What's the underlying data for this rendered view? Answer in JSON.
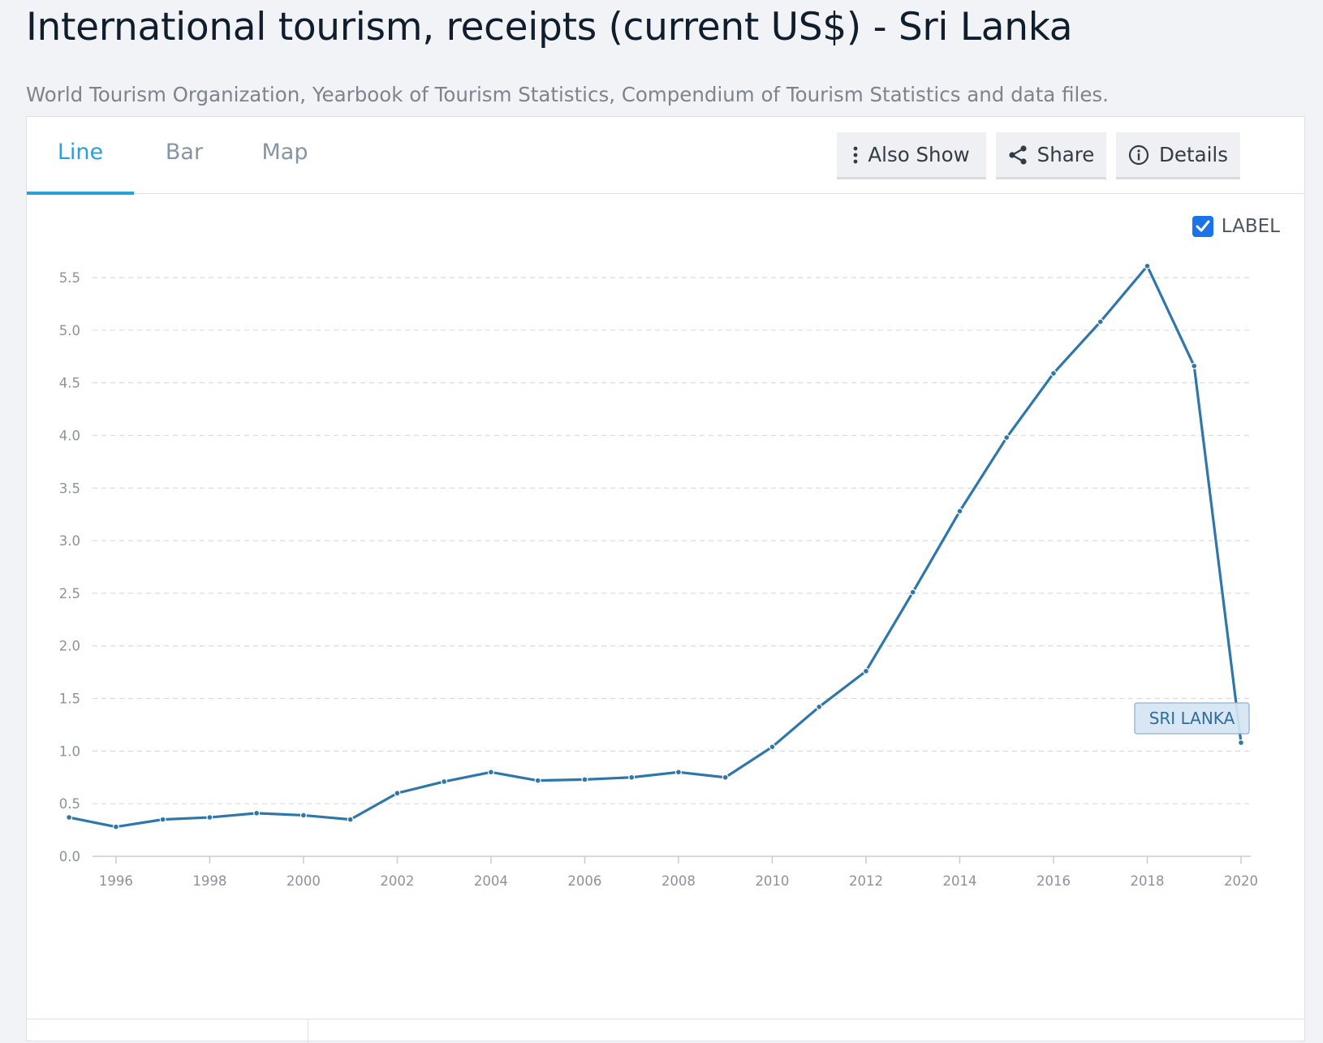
{
  "header": {
    "title": "International tourism, receipts (current US$) - Sri Lanka",
    "subtitle": "World Tourism Organization, Yearbook of Tourism Statistics, Compendium of Tourism Statistics and data files."
  },
  "tabs": [
    {
      "label": "Line",
      "active": true
    },
    {
      "label": "Bar",
      "active": false
    },
    {
      "label": "Map",
      "active": false
    }
  ],
  "toolbar": {
    "also_show": {
      "label": "Also Show",
      "icon": "kebab-icon"
    },
    "share": {
      "label": "Share",
      "icon": "share-icon"
    },
    "details": {
      "label": "Details",
      "icon": "info-icon"
    }
  },
  "label_toggle": {
    "label": "LABEL",
    "checked": true
  },
  "colors": {
    "accent": "#2b9fd8",
    "line": "#2f77a8",
    "checkbox": "#1a73e8",
    "series_label_bg": "#d5e5f2"
  },
  "chart_data": {
    "type": "line",
    "x": [
      1995,
      1996,
      1997,
      1998,
      1999,
      2000,
      2001,
      2002,
      2003,
      2004,
      2005,
      2006,
      2007,
      2008,
      2009,
      2010,
      2011,
      2012,
      2013,
      2014,
      2015,
      2016,
      2017,
      2018,
      2019,
      2020
    ],
    "series": [
      {
        "name": "SRI LANKA",
        "values": [
          0.37,
          0.28,
          0.35,
          0.37,
          0.41,
          0.39,
          0.35,
          0.6,
          0.71,
          0.8,
          0.72,
          0.73,
          0.75,
          0.8,
          0.75,
          1.04,
          1.42,
          1.76,
          2.51,
          3.28,
          3.98,
          4.59,
          5.08,
          5.61,
          4.66,
          1.08
        ]
      }
    ],
    "y_ticks": [
      "0.0",
      "0.5",
      "1.0",
      "1.5",
      "2.0",
      "2.5",
      "3.0",
      "3.5",
      "4.0",
      "4.5",
      "5.0",
      "5.5"
    ],
    "x_ticks": [
      "1996",
      "1998",
      "2000",
      "2002",
      "2004",
      "2006",
      "2008",
      "2010",
      "2012",
      "2014",
      "2016",
      "2018",
      "2020"
    ],
    "ylim": [
      0,
      5.5
    ],
    "xlim": [
      1995,
      2020
    ],
    "grid": "horizontal dashed",
    "series_label_position": "end-of-line"
  }
}
